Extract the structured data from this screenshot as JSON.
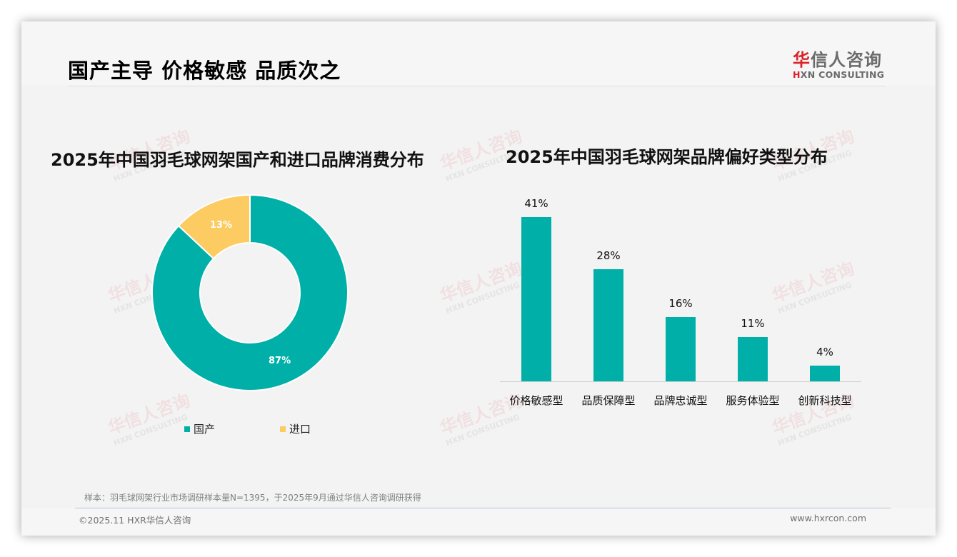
{
  "header": {
    "title": "国产主导 价格敏感 品质次之",
    "logo_cn_first": "华",
    "logo_cn_rest": "信人咨询",
    "logo_en_first": "H",
    "logo_en_rest": "XN CONSULTING"
  },
  "watermark": {
    "cn": "华信人咨询",
    "en": "HXN CONSULTING"
  },
  "colors": {
    "teal": "#00b0a8",
    "yellow": "#fccb61",
    "logo_red": "#d9232a"
  },
  "left_chart": {
    "title": "2025年中国羽毛球网架国产和进口品牌消费分布",
    "slices": [
      {
        "label": "国产",
        "value": 87,
        "display": "87%"
      },
      {
        "label": "进口",
        "value": 13,
        "display": "13%"
      }
    ],
    "legend": [
      {
        "label": "国产"
      },
      {
        "label": "进口"
      }
    ]
  },
  "right_chart": {
    "title": "2025年中国羽毛球网架品牌偏好类型分布",
    "bars": [
      {
        "label": "价格敏感型",
        "value": 41,
        "display": "41%"
      },
      {
        "label": "品质保障型",
        "value": 28,
        "display": "28%"
      },
      {
        "label": "品牌忠诚型",
        "value": 16,
        "display": "16%"
      },
      {
        "label": "服务体验型",
        "value": 11,
        "display": "11%"
      },
      {
        "label": "创新科技型",
        "value": 4,
        "display": "4%"
      }
    ]
  },
  "footer": {
    "note": "样本：羽毛球网架行业市场调研样本量N=1395，于2025年9月通过华信人咨询调研获得",
    "copyright": "©2025.11 HXR华信人咨询",
    "website": "www.hxrcon.com"
  },
  "chart_data": [
    {
      "type": "pie",
      "title": "2025年中国羽毛球网架国产和进口品牌消费分布",
      "categories": [
        "国产",
        "进口"
      ],
      "values": [
        87,
        13
      ],
      "unit": "%",
      "donut": true,
      "legend_position": "bottom"
    },
    {
      "type": "bar",
      "title": "2025年中国羽毛球网架品牌偏好类型分布",
      "categories": [
        "价格敏感型",
        "品质保障型",
        "品牌忠诚型",
        "服务体验型",
        "创新科技型"
      ],
      "values": [
        41,
        28,
        16,
        11,
        4
      ],
      "unit": "%",
      "xlabel": "",
      "ylabel": "",
      "ylim": [
        0,
        45
      ],
      "grid": false
    }
  ]
}
